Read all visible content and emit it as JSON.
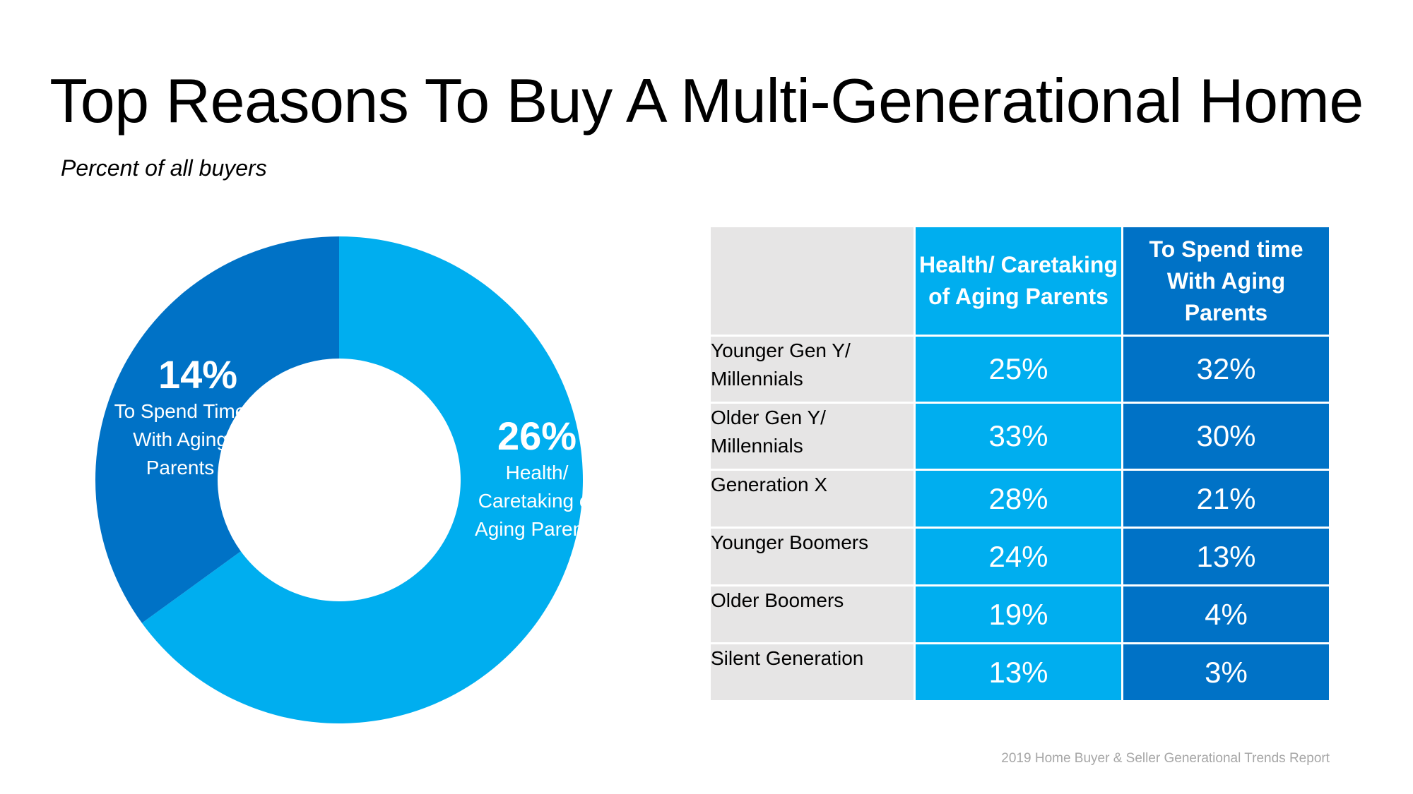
{
  "title": "Top Reasons To Buy A Multi-Generational Home",
  "subtitle": "Percent of all buyers",
  "source": "2019 Home Buyer & Seller Generational Trends Report",
  "colors": {
    "light_blue": "#00aeef",
    "dark_blue": "#0072c6",
    "label_gray": "#e6e5e5"
  },
  "chart_data": [
    {
      "type": "pie",
      "categories": [
        "Health/ Caretaking of Aging Parents",
        "To Spend Time With Aging Parents"
      ],
      "values": [
        26,
        14
      ],
      "labels": [
        {
          "pct": "26%",
          "text": "Health/ Caretaking of Aging Parents"
        },
        {
          "pct": "14%",
          "text": "To Spend Time With Aging Parents"
        }
      ],
      "colors": [
        "#00aeef",
        "#0072c6"
      ],
      "title": "",
      "xlabel": "",
      "ylabel": ""
    },
    {
      "type": "table",
      "columns": [
        "",
        "Health/ Caretaking of Aging Parents",
        "To Spend time With Aging Parents"
      ],
      "rows": [
        {
          "label": "Younger Gen Y/ Millennials",
          "a": "25%",
          "b": "32%"
        },
        {
          "label": "Older Gen Y/ Millennials",
          "a": "33%",
          "b": "30%"
        },
        {
          "label": "Generation X",
          "a": "28%",
          "b": "21%"
        },
        {
          "label": "Younger Boomers",
          "a": "24%",
          "b": "13%"
        },
        {
          "label": "Older Boomers",
          "a": "19%",
          "b": "4%"
        },
        {
          "label": "Silent Generation",
          "a": "13%",
          "b": "3%"
        }
      ]
    }
  ]
}
